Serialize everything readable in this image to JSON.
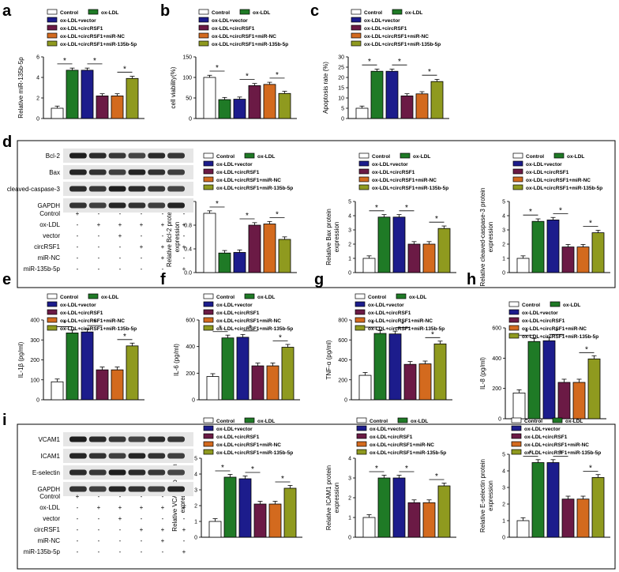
{
  "legend_labels": [
    "Control",
    "ox-LDL",
    "ox-LDL+vector",
    "ox-LDL+circRSF1",
    "ox-LDL+circRSF1+miR-NC",
    "ox-LDL+circRSF1+miR-135b-5p"
  ],
  "colors": [
    "#ffffff",
    "#1f7a26",
    "#1c1c8c",
    "#6b1a45",
    "#d36a1e",
    "#8f9a1f"
  ],
  "treatment_rows": [
    "Control",
    "ox-LDL",
    "vector",
    "circRSF1",
    "miR-NC",
    "miR-135b-5p"
  ],
  "treatment_marks": [
    [
      "+",
      "-",
      "-",
      "-",
      "-",
      "-"
    ],
    [
      "-",
      "+",
      "+",
      "+",
      "+",
      "+"
    ],
    [
      "-",
      "-",
      "+",
      "-",
      "-",
      "-"
    ],
    [
      "-",
      "-",
      "-",
      "+",
      "+",
      "+"
    ],
    [
      "-",
      "-",
      "-",
      "-",
      "+",
      "-"
    ],
    [
      "-",
      "-",
      "-",
      "-",
      "-",
      "+"
    ]
  ],
  "blot_d_labels": [
    "Bcl-2",
    "Bax",
    "cleaved-caspase-3",
    "GAPDH"
  ],
  "blot_i_labels": [
    "VCAM1",
    "ICAM1",
    "E-selectin",
    "GAPDH"
  ],
  "chart_data": [
    {
      "id": "a",
      "panel": "a",
      "type": "bar",
      "ylabel": "Relative miR-135b-5p",
      "ylim": [
        0,
        6
      ],
      "ticks": [
        0,
        2,
        4,
        6
      ],
      "values": [
        1.0,
        4.7,
        4.7,
        2.2,
        2.2,
        3.9
      ]
    },
    {
      "id": "b",
      "panel": "b",
      "type": "bar",
      "ylabel": "cell viability(%)",
      "ylim": [
        0,
        150
      ],
      "ticks": [
        0,
        50,
        100,
        150
      ],
      "values": [
        100,
        46,
        47,
        80,
        83,
        61
      ]
    },
    {
      "id": "c",
      "panel": "c",
      "type": "bar",
      "ylabel": "Apoptosis rate (%)",
      "ylim": [
        0,
        30
      ],
      "ticks": [
        0,
        5,
        10,
        15,
        20,
        25,
        30
      ],
      "values": [
        5,
        23,
        23,
        11,
        12,
        18
      ]
    },
    {
      "id": "d1",
      "panel": "d",
      "type": "bar",
      "ylabel": "Relative Bcl-2 protein expression",
      "ylim": [
        0,
        1.2
      ],
      "ticks": [
        0.0,
        0.4,
        0.8,
        1.2
      ],
      "ticklabels": [
        "0.0",
        "0.4",
        "0.8",
        "1.2"
      ],
      "values": [
        1.0,
        0.33,
        0.34,
        0.8,
        0.82,
        0.56
      ]
    },
    {
      "id": "d2",
      "panel": "",
      "type": "bar",
      "ylabel": "Relative Bax protein expression",
      "ylim": [
        0,
        5
      ],
      "ticks": [
        0,
        1,
        2,
        3,
        4,
        5
      ],
      "values": [
        1.0,
        3.9,
        3.9,
        2.0,
        2.0,
        3.1
      ]
    },
    {
      "id": "d3",
      "panel": "",
      "type": "bar",
      "ylabel": "Relative cleaved-caspase-3 protein expression",
      "ylim": [
        0,
        5
      ],
      "ticks": [
        0,
        1,
        2,
        3,
        4,
        5
      ],
      "values": [
        1.0,
        3.6,
        3.7,
        1.8,
        1.8,
        2.8
      ]
    },
    {
      "id": "e",
      "panel": "e",
      "type": "bar",
      "ylabel": "IL-1β (pg/ml)",
      "ylim": [
        0,
        400
      ],
      "ticks": [
        0,
        100,
        200,
        300,
        400
      ],
      "values": [
        90,
        335,
        340,
        150,
        150,
        270
      ]
    },
    {
      "id": "f",
      "panel": "f",
      "type": "bar",
      "ylabel": "IL-6 (pg/ml)",
      "ylim": [
        0,
        600
      ],
      "ticks": [
        0,
        200,
        400,
        600
      ],
      "values": [
        175,
        465,
        470,
        255,
        255,
        395
      ]
    },
    {
      "id": "g",
      "panel": "g",
      "type": "bar",
      "ylabel": "TNF-α (pg/ml)",
      "ylim": [
        0,
        800
      ],
      "ticks": [
        0,
        200,
        400,
        600,
        800
      ],
      "values": [
        245,
        665,
        660,
        355,
        360,
        560
      ]
    },
    {
      "id": "h",
      "panel": "h",
      "type": "bar",
      "ylabel": "IL-8 (pg/ml)",
      "ylim": [
        0,
        600
      ],
      "ticks": [
        0,
        200,
        400,
        600
      ],
      "values": [
        170,
        510,
        515,
        240,
        240,
        395
      ]
    },
    {
      "id": "i1",
      "panel": "i",
      "type": "bar",
      "ylabel": "Relative VCAM1 protein expression",
      "ylim": [
        0,
        5
      ],
      "ticks": [
        0,
        1,
        2,
        3,
        4,
        5
      ],
      "values": [
        1.0,
        3.8,
        3.7,
        2.1,
        2.1,
        3.1
      ]
    },
    {
      "id": "i2",
      "panel": "",
      "type": "bar",
      "ylabel": "Relative ICAM1 protein expression",
      "ylim": [
        0,
        4
      ],
      "ticks": [
        0,
        1,
        2,
        3,
        4
      ],
      "values": [
        1.0,
        3.0,
        3.0,
        1.75,
        1.75,
        2.6
      ]
    },
    {
      "id": "i3",
      "panel": "",
      "type": "bar",
      "ylabel": "Relative E-selectin protein expression",
      "ylim": [
        0,
        5
      ],
      "ticks": [
        0,
        1,
        2,
        3,
        4,
        5
      ],
      "values": [
        1.0,
        4.5,
        4.5,
        2.3,
        2.3,
        3.6
      ]
    }
  ]
}
